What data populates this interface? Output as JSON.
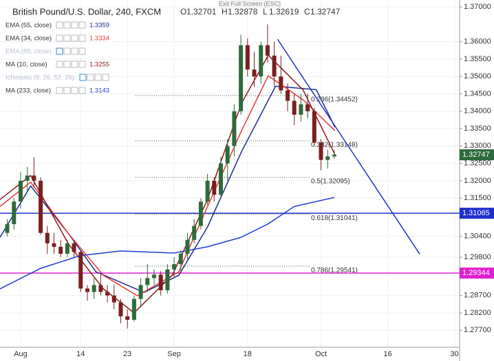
{
  "chart_data": {
    "type": "candlestick",
    "title": "British Pound/U.S. Dollar, 240, FXCM",
    "tooltip": "Exit Full Screen (ESC)",
    "ohlc_header": [
      {
        "label": "O",
        "value": 1.32701
      },
      {
        "label": "H",
        "value": 1.32878
      },
      {
        "label": "L",
        "value": 1.32619
      },
      {
        "label": "C",
        "value": 1.32747
      }
    ],
    "indicators": [
      {
        "name": "EMA (55, close)",
        "value": 1.3359,
        "color": "#1a2a8c",
        "x": [
          -3.09,
          1.5,
          7.2,
          11.3,
          18.5,
          23.7,
          28,
          33.1,
          38.2,
          44.3,
          47.1
        ],
        "values": [
          1.3037,
          1.3185,
          1.3047,
          1.2938,
          1.2879,
          1.2928,
          1.3067,
          1.3284,
          1.3472,
          1.3462,
          1.3354
        ]
      },
      {
        "name": "EMA (34, close)",
        "value": 1.3334,
        "color": "#e53935",
        "x": [
          -3.09,
          1.5,
          7.2,
          12.4,
          17.5,
          23.7,
          28,
          33.1,
          37.1,
          42.3,
          47.1
        ],
        "values": [
          1.3126,
          1.3196,
          1.3047,
          1.2928,
          1.2869,
          1.2938,
          1.3126,
          1.3344,
          1.3502,
          1.3433,
          1.3344
        ]
      },
      {
        "name": "EMA (89, close)",
        "color": "#b8c0d0"
      },
      {
        "name": "MA (10, close)",
        "value": 1.3255,
        "color": "#8b1a1a",
        "x": [
          -3.09,
          1.5,
          7.2,
          12.4,
          17,
          22.7,
          28,
          33.1,
          37.1,
          42.3,
          47.1
        ],
        "values": [
          1.3146,
          1.3215,
          1.3017,
          1.2889,
          1.282,
          1.2928,
          1.3146,
          1.3423,
          1.3561,
          1.3462,
          1.3275
        ]
      },
      {
        "name": "Ichimoku (9, 26, 52, 26)",
        "color": "#b8c0d0"
      },
      {
        "name": "MA (233, close)",
        "value": 1.3143,
        "color": "#1f3bd6",
        "x": [
          -3.09,
          3,
          9,
          15,
          19,
          23,
          28,
          33,
          37,
          41,
          47
        ],
        "values": [
          1.2889,
          1.2948,
          1.2985,
          1.2998,
          1.2995,
          1.2992,
          1.301,
          1.3037,
          1.3075,
          1.3126,
          1.3152
        ]
      }
    ],
    "x": [
      -2,
      -1,
      0,
      1,
      2,
      3,
      4,
      5,
      6,
      7,
      8,
      9,
      10,
      11,
      12,
      13,
      14,
      15,
      16,
      17,
      18,
      19,
      20,
      21,
      22,
      23,
      24,
      25,
      26,
      27,
      28,
      29,
      30,
      31,
      32,
      33,
      34,
      35,
      36,
      37,
      38,
      39,
      40,
      41,
      42,
      43,
      44,
      45,
      46,
      47
    ],
    "open": [
      1.305,
      1.3075,
      1.314,
      1.32,
      1.3215,
      1.32,
      1.305,
      1.302,
      1.301,
      1.299,
      1.302,
      1.2995,
      1.289,
      1.288,
      1.29,
      1.288,
      1.287,
      1.285,
      1.281,
      1.28,
      1.286,
      1.29,
      1.292,
      1.293,
      1.2885,
      1.2945,
      1.296,
      1.299,
      1.303,
      1.307,
      1.314,
      1.32,
      1.316,
      1.325,
      1.33,
      1.34,
      1.359,
      1.352,
      1.35,
      1.359,
      1.356,
      1.35,
      1.346,
      1.343,
      1.339,
      1.342,
      1.34,
      1.331,
      1.326,
      1.327
    ],
    "high": [
      1.309,
      1.315,
      1.3225,
      1.324,
      1.3268,
      1.321,
      1.307,
      1.305,
      1.303,
      1.303,
      1.303,
      1.3,
      1.29,
      1.292,
      1.293,
      1.29,
      1.29,
      1.286,
      1.283,
      1.287,
      1.292,
      1.296,
      1.2945,
      1.294,
      1.296,
      1.298,
      1.3,
      1.305,
      1.309,
      1.315,
      1.322,
      1.321,
      1.327,
      1.332,
      1.342,
      1.362,
      1.361,
      1.357,
      1.36,
      1.365,
      1.36,
      1.356,
      1.348,
      1.345,
      1.345,
      1.345,
      1.341,
      1.332,
      1.329,
      1.3288
    ],
    "low": [
      1.304,
      1.306,
      1.312,
      1.317,
      1.318,
      1.3045,
      1.299,
      1.299,
      1.298,
      1.298,
      1.298,
      1.288,
      1.2855,
      1.286,
      1.287,
      1.285,
      1.283,
      1.279,
      1.2775,
      1.2795,
      1.284,
      1.288,
      1.29,
      1.287,
      1.2875,
      1.292,
      1.294,
      1.297,
      1.302,
      1.306,
      1.313,
      1.314,
      1.315,
      1.32,
      1.327,
      1.339,
      1.35,
      1.347,
      1.348,
      1.354,
      1.347,
      1.345,
      1.34,
      1.336,
      1.337,
      1.338,
      1.33,
      1.323,
      1.3235,
      1.3262
    ],
    "close": [
      1.3075,
      1.314,
      1.32,
      1.3215,
      1.32,
      1.305,
      1.302,
      1.301,
      1.299,
      1.302,
      1.2995,
      1.289,
      1.288,
      1.29,
      1.288,
      1.287,
      1.285,
      1.281,
      1.28,
      1.286,
      1.29,
      1.292,
      1.293,
      1.2885,
      1.2945,
      1.296,
      1.299,
      1.303,
      1.307,
      1.314,
      1.32,
      1.316,
      1.325,
      1.33,
      1.34,
      1.359,
      1.352,
      1.35,
      1.359,
      1.356,
      1.35,
      1.346,
      1.343,
      1.339,
      1.342,
      1.34,
      1.331,
      1.326,
      1.327,
      1.3275
    ],
    "up_color": "#2e6b3a",
    "down_color": "#7a1f1f",
    "fib": [
      {
        "label": "0.236(1.34452)",
        "value": 1.34452
      },
      {
        "label": "0.382(1.33148)",
        "value": 1.33148
      },
      {
        "label": "0.5(1.32095)",
        "value": 1.32095
      },
      {
        "label": "0.618(1.31041)",
        "value": 1.31041
      },
      {
        "label": "0.786(1.29541)",
        "value": 1.29541
      }
    ],
    "fib_x": [
      17.2,
      43.3
    ],
    "trendline": {
      "x": [
        38.5,
        59.8
      ],
      "values": [
        1.3607,
        1.2989
      ],
      "color": "#1f2fd0"
    },
    "hlines": [
      {
        "value": 1.31065,
        "color": "#1f2fd0"
      },
      {
        "value": 1.29344,
        "color": "#e020d0"
      }
    ],
    "xlim": [
      -3.09,
      65.77
    ],
    "ylim": [
      1.2721,
      1.372
    ],
    "xticks": [
      {
        "value": 0,
        "label": "Aug"
      },
      {
        "value": 9,
        "label": "14"
      },
      {
        "value": 16,
        "label": "23"
      },
      {
        "value": 23,
        "label": "Sep"
      },
      {
        "value": 34,
        "label": "18"
      },
      {
        "value": 45,
        "label": "Oct"
      },
      {
        "value": 55,
        "label": "16"
      },
      {
        "value": 65,
        "label": "30"
      }
    ],
    "yticks": [
      {
        "value": 1.37,
        "label": "1.37000"
      },
      {
        "value": 1.36,
        "label": "1.36000"
      },
      {
        "value": 1.355,
        "label": "1.35500"
      },
      {
        "value": 1.35,
        "label": "1.35000"
      },
      {
        "value": 1.345,
        "label": "1.34500"
      },
      {
        "value": 1.34,
        "label": "1.34000"
      },
      {
        "value": 1.335,
        "label": "1.33500"
      },
      {
        "value": 1.33,
        "label": "1.33000"
      },
      {
        "value": 1.325,
        "label": "1.32500"
      },
      {
        "value": 1.32,
        "label": "1.32000"
      },
      {
        "value": 1.315,
        "label": "1.31500"
      },
      {
        "value": 1.304,
        "label": "1.30400"
      },
      {
        "value": 1.298,
        "label": "1.29800"
      },
      {
        "value": 1.287,
        "label": "1.28700"
      },
      {
        "value": 1.282,
        "label": "1.28200"
      },
      {
        "value": 1.277,
        "label": "1.27700"
      }
    ],
    "grid": true
  }
}
